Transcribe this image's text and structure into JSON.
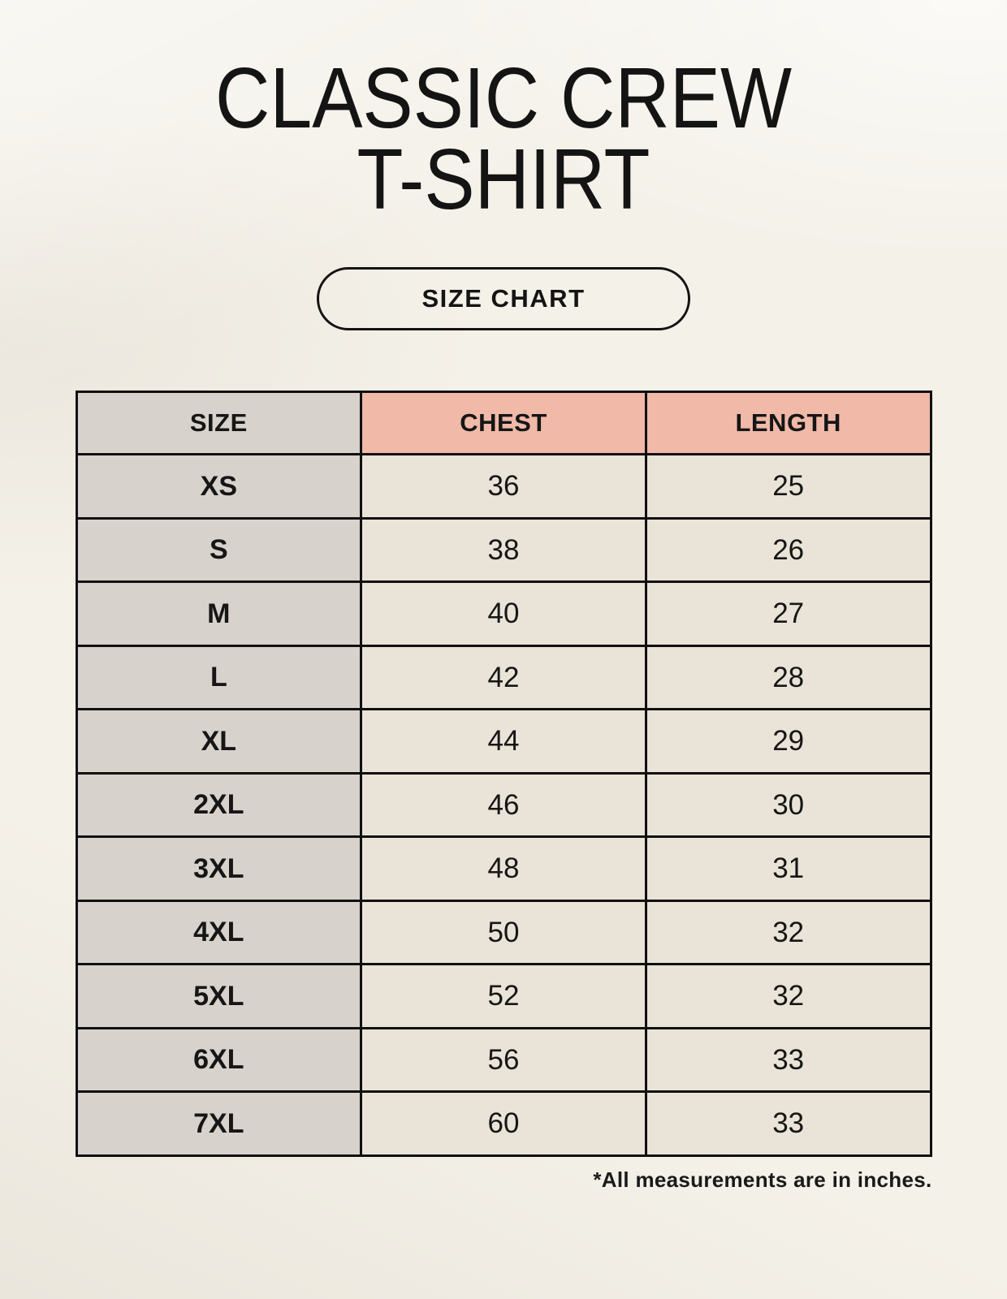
{
  "header": {
    "title_line1": "CLASSIC CREW",
    "title_line2": "T-SHIRT",
    "badge_label": "SIZE CHART"
  },
  "footnote": "*All measurements are in inches.",
  "colors": {
    "page_background": "#f4f1e9",
    "header_accent_pink": "#f0b9a8",
    "size_column_gray": "#d8d2cc",
    "value_cell_beige": "#eae3d7",
    "table_border": "#101010",
    "text": "#161616"
  },
  "chart_data": {
    "type": "table",
    "title": "CLASSIC CREW T-SHIRT SIZE CHART",
    "units": "inches",
    "columns": [
      "SIZE",
      "CHEST",
      "LENGTH"
    ],
    "rows": [
      [
        "XS",
        "36",
        "25"
      ],
      [
        "S",
        "38",
        "26"
      ],
      [
        "M",
        "40",
        "27"
      ],
      [
        "L",
        "42",
        "28"
      ],
      [
        "XL",
        "44",
        "29"
      ],
      [
        "2XL",
        "46",
        "30"
      ],
      [
        "3XL",
        "48",
        "31"
      ],
      [
        "4XL",
        "50",
        "32"
      ],
      [
        "5XL",
        "52",
        "32"
      ],
      [
        "6XL",
        "56",
        "33"
      ],
      [
        "7XL",
        "60",
        "33"
      ]
    ]
  }
}
